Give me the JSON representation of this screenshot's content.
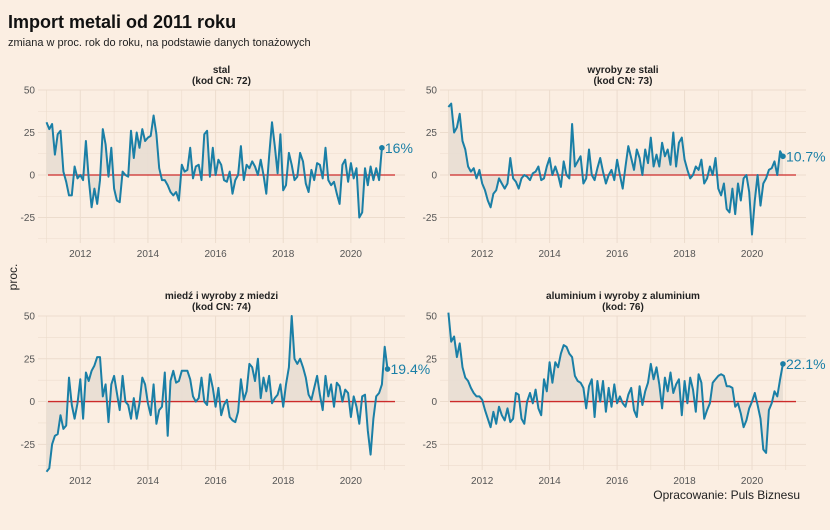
{
  "title": "Import metali od 2011 roku",
  "subtitle": "zmiana w proc. rok do roku, na podstawie danych tonażowych",
  "ylabel": "proc.",
  "caption": "Opracowanie: Puls Biznesu",
  "colors": {
    "line": "#1a7fa6",
    "zero": "#cc2a2a",
    "fill": "#e8ddd3",
    "grid": "#ecdccd"
  },
  "chart_data": [
    {
      "type": "line",
      "title": "stal",
      "subtitle": "(kod CN: 72)",
      "end_label": "16%",
      "x_ticks": [
        "2012",
        "2014",
        "2016",
        "2018",
        "2020"
      ],
      "y_ticks": [
        "50",
        "25",
        "0",
        "-25"
      ],
      "ylim": [
        -40,
        50
      ],
      "x_range": [
        "2011-01",
        "2020-12"
      ],
      "values": [
        31,
        27,
        30,
        12,
        24,
        26,
        2,
        -4,
        -12,
        -12,
        5,
        -2,
        0,
        -3,
        20,
        -2,
        -19,
        -8,
        -17,
        -3,
        27,
        18,
        -1,
        16,
        -8,
        -15,
        -16,
        2,
        0,
        -1,
        26,
        10,
        25,
        16,
        27,
        20,
        22,
        23,
        35,
        24,
        4,
        -3,
        -3,
        -6,
        -10,
        -12,
        -10,
        -15,
        6,
        2,
        3,
        16,
        -2,
        5,
        6,
        -3,
        24,
        26,
        -1,
        16,
        0,
        9,
        6,
        -3,
        -4,
        2,
        -11,
        -3,
        0,
        17,
        -3,
        6,
        4,
        8,
        5,
        0,
        9,
        0,
        -11,
        11,
        31,
        17,
        1,
        24,
        -9,
        -6,
        13,
        6,
        -3,
        -1,
        13,
        8,
        -5,
        -10,
        3,
        -3,
        7,
        6,
        -2,
        16,
        -3,
        -6,
        -4,
        -11,
        -17,
        6,
        9,
        -4,
        7,
        -2,
        4,
        -25,
        -22,
        4,
        -6,
        5,
        -3,
        4,
        -3,
        16
      ]
    },
    {
      "type": "line",
      "title": "wyroby ze stali",
      "subtitle": "(kod CN: 73)",
      "end_label": "10.7%",
      "x_ticks": [
        "2012",
        "2014",
        "2016",
        "2018",
        "2020"
      ],
      "y_ticks": [
        "50",
        "25",
        "0",
        "-25"
      ],
      "ylim": [
        -40,
        50
      ],
      "x_range": [
        "2011-01",
        "2020-12"
      ],
      "values": [
        40,
        42,
        25,
        28,
        36,
        20,
        15,
        5,
        2,
        4,
        -2,
        3,
        -5,
        -9,
        -15,
        -19,
        -11,
        -9,
        -2,
        -5,
        -8,
        -5,
        10,
        -2,
        -4,
        -8,
        -2,
        0,
        -1,
        -3,
        1,
        2,
        5,
        -3,
        -2,
        5,
        10,
        0,
        5,
        0,
        -7,
        8,
        0,
        -2,
        30,
        5,
        8,
        11,
        -5,
        -2,
        15,
        0,
        -3,
        4,
        10,
        2,
        -5,
        0,
        3,
        -3,
        9,
        0,
        -8,
        5,
        17,
        10,
        3,
        15,
        10,
        0,
        15,
        7,
        22,
        5,
        12,
        5,
        19,
        11,
        15,
        6,
        25,
        5,
        19,
        22,
        9,
        3,
        -2,
        0,
        5,
        3,
        9,
        -5,
        -2,
        5,
        0,
        10,
        -8,
        -12,
        -5,
        -20,
        -22,
        -8,
        -23,
        -5,
        -15,
        -2,
        0,
        -10,
        -35,
        -15,
        0,
        -18,
        -5,
        -2,
        3,
        4,
        8,
        0,
        14,
        11
      ]
    },
    {
      "type": "line",
      "title": "miedź i wyroby z miedzi",
      "subtitle": "(kod CN: 74)",
      "end_label": "19.4%",
      "x_ticks": [
        "2012",
        "2014",
        "2016",
        "2018",
        "2020"
      ],
      "y_ticks": [
        "50",
        "25",
        "0",
        "-25"
      ],
      "ylim": [
        -40,
        50
      ],
      "x_range": [
        "2011-01",
        "2020-12"
      ],
      "values": [
        -41,
        -39,
        -25,
        -20,
        -19,
        -8,
        -16,
        -14,
        14,
        -2,
        -10,
        -1,
        13,
        -10,
        17,
        12,
        18,
        21,
        26,
        26,
        3,
        10,
        -12,
        10,
        15,
        5,
        -5,
        15,
        0,
        -2,
        -10,
        2,
        -10,
        -1,
        14,
        10,
        -1,
        -8,
        10,
        -13,
        -5,
        -3,
        17,
        -20,
        12,
        18,
        11,
        12,
        18,
        18,
        18,
        13,
        3,
        0,
        2,
        14,
        0,
        -2,
        16,
        8,
        -3,
        8,
        -8,
        -2,
        1,
        -9,
        -11,
        -12,
        -6,
        13,
        1,
        6,
        22,
        20,
        12,
        25,
        2,
        14,
        6,
        15,
        -1,
        2,
        4,
        10,
        -3,
        10,
        20,
        50,
        25,
        22,
        25,
        20,
        14,
        4,
        1,
        8,
        15,
        4,
        -5,
        15,
        3,
        10,
        -3,
        11,
        9,
        0,
        7,
        5,
        -9,
        3,
        -3,
        -13,
        3,
        4,
        -17,
        -31,
        -10,
        3,
        5,
        10,
        32,
        19
      ]
    },
    {
      "type": "line",
      "title": "aluminium i wyroby z aluminium",
      "subtitle": "(kod: 76)",
      "end_label": "22.1%",
      "x_ticks": [
        "2012",
        "2014",
        "2016",
        "2018",
        "2020"
      ],
      "y_ticks": [
        "50",
        "25",
        "0",
        "-25"
      ],
      "ylim": [
        -40,
        50
      ],
      "x_range": [
        "2011-01",
        "2020-12"
      ],
      "values": [
        52,
        35,
        38,
        26,
        34,
        20,
        14,
        12,
        8,
        5,
        3,
        3,
        1,
        -5,
        -10,
        -15,
        -6,
        -13,
        -3,
        -8,
        -11,
        -4,
        -12,
        -10,
        5,
        4,
        -10,
        -13,
        0,
        5,
        -1,
        7,
        -4,
        -8,
        13,
        6,
        23,
        11,
        23,
        20,
        28,
        33,
        32,
        28,
        26,
        15,
        12,
        11,
        8,
        -4,
        9,
        13,
        -9,
        12,
        0,
        12,
        -6,
        8,
        -3,
        10,
        -1,
        3,
        -1,
        -3,
        4,
        8,
        -5,
        -9,
        9,
        -2,
        6,
        11,
        22,
        13,
        20,
        10,
        -4,
        14,
        6,
        17,
        5,
        10,
        13,
        -8,
        12,
        -1,
        14,
        7,
        -6,
        16,
        11,
        -10,
        -5,
        -1,
        11,
        13,
        15,
        16,
        15,
        9,
        9,
        8,
        -3,
        -1,
        -7,
        -15,
        -11,
        -4,
        0,
        5,
        -2,
        -10,
        -28,
        -30,
        -5,
        -1,
        6,
        3,
        13,
        22
      ]
    }
  ]
}
